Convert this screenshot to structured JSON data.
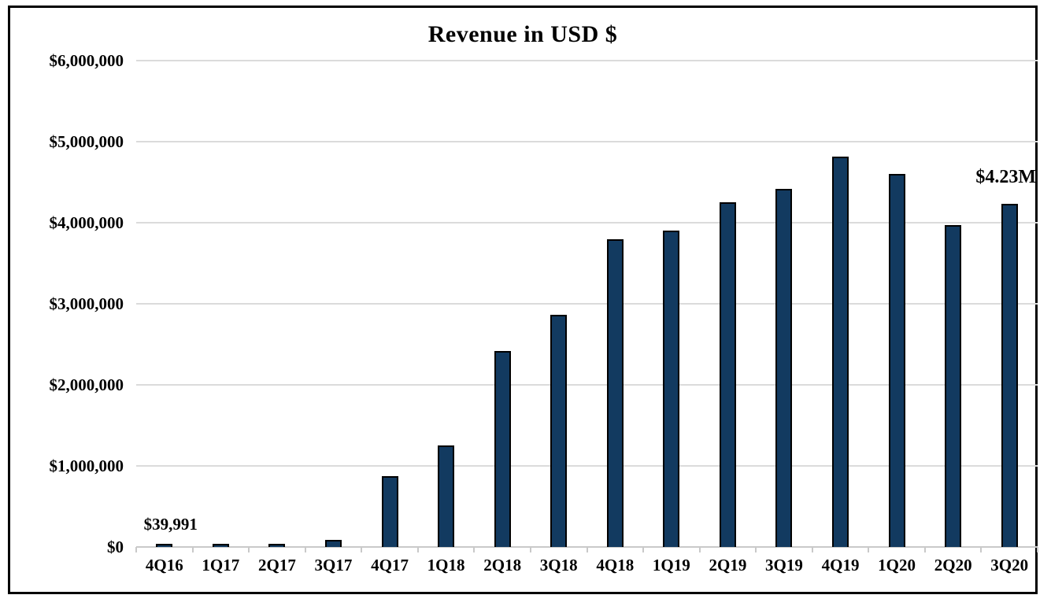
{
  "chart_data": {
    "type": "bar",
    "title": "Revenue in USD $",
    "categories": [
      "4Q16",
      "1Q17",
      "2Q17",
      "3Q17",
      "4Q17",
      "1Q18",
      "2Q18",
      "3Q18",
      "4Q18",
      "1Q19",
      "2Q19",
      "3Q19",
      "4Q19",
      "1Q20",
      "2Q20",
      "3Q20"
    ],
    "values": [
      39991,
      42000,
      40000,
      85000,
      875000,
      1250000,
      2420000,
      2860000,
      3800000,
      3900000,
      4250000,
      4420000,
      4820000,
      4600000,
      3970000,
      4230000
    ],
    "ylabel": "",
    "xlabel": "",
    "ylim": [
      0,
      6000000
    ],
    "ytick_step": 1000000,
    "ytick_labels": [
      "$0",
      "$1,000,000",
      "$2,000,000",
      "$3,000,000",
      "$4,000,000",
      "$5,000,000",
      "$6,000,000"
    ],
    "grid": true,
    "legend": false,
    "annotations": [
      {
        "text": "$39,991",
        "bar_index": 0,
        "align": "center"
      },
      {
        "text": "$4.23M",
        "bar_index": 15,
        "align": "right"
      }
    ],
    "colors": {
      "bar_fill": "#123A60",
      "bar_border": "#000000",
      "gridline": "#DBDBDB",
      "axis_line": "#C9C9C9",
      "text": "#000000",
      "frame_border": "#000000",
      "background": "#FFFFFF"
    }
  }
}
